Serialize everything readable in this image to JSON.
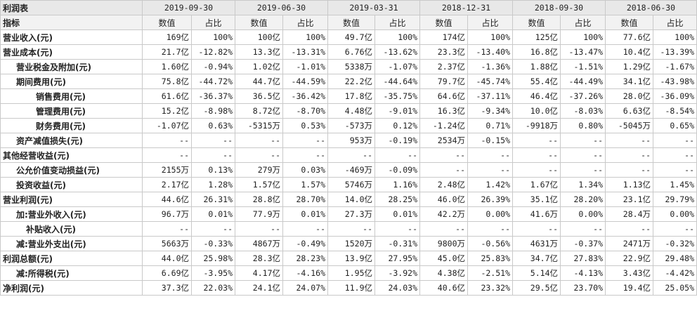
{
  "table": {
    "title": "利润表",
    "index_label": "指标",
    "value_label": "数值",
    "ratio_label": "占比",
    "periods": [
      "2019-09-30",
      "2019-06-30",
      "2019-03-31",
      "2018-12-31",
      "2018-09-30",
      "2018-06-30"
    ],
    "rows": [
      {
        "label": "营业收入(元)",
        "indent": 0,
        "cells": [
          "169亿",
          "100%",
          "100亿",
          "100%",
          "49.7亿",
          "100%",
          "174亿",
          "100%",
          "125亿",
          "100%",
          "77.6亿",
          "100%"
        ]
      },
      {
        "label": "营业成本(元)",
        "indent": 0,
        "cells": [
          "21.7亿",
          "-12.82%",
          "13.3亿",
          "-13.31%",
          "6.76亿",
          "-13.62%",
          "23.3亿",
          "-13.40%",
          "16.8亿",
          "-13.47%",
          "10.4亿",
          "-13.39%"
        ]
      },
      {
        "label": "营业税金及附加(元)",
        "indent": 1,
        "cells": [
          "1.60亿",
          "-0.94%",
          "1.02亿",
          "-1.01%",
          "5338万",
          "-1.07%",
          "2.37亿",
          "-1.36%",
          "1.88亿",
          "-1.51%",
          "1.29亿",
          "-1.67%"
        ]
      },
      {
        "label": "期间费用(元)",
        "indent": 1,
        "cells": [
          "75.8亿",
          "-44.72%",
          "44.7亿",
          "-44.59%",
          "22.2亿",
          "-44.64%",
          "79.7亿",
          "-45.74%",
          "55.4亿",
          "-44.49%",
          "34.1亿",
          "-43.98%"
        ]
      },
      {
        "label": "销售费用(元)",
        "indent": 2,
        "cells": [
          "61.6亿",
          "-36.37%",
          "36.5亿",
          "-36.42%",
          "17.8亿",
          "-35.75%",
          "64.6亿",
          "-37.11%",
          "46.4亿",
          "-37.26%",
          "28.0亿",
          "-36.09%"
        ]
      },
      {
        "label": "管理费用(元)",
        "indent": 2,
        "cells": [
          "15.2亿",
          "-8.98%",
          "8.72亿",
          "-8.70%",
          "4.48亿",
          "-9.01%",
          "16.3亿",
          "-9.34%",
          "10.0亿",
          "-8.03%",
          "6.63亿",
          "-8.54%"
        ]
      },
      {
        "label": "财务费用(元)",
        "indent": 2,
        "cells": [
          "-1.07亿",
          "0.63%",
          "-5315万",
          "0.53%",
          "-573万",
          "0.12%",
          "-1.24亿",
          "0.71%",
          "-9918万",
          "0.80%",
          "-5045万",
          "0.65%"
        ]
      },
      {
        "label": "资产减值损失(元)",
        "indent": 1,
        "cells": [
          "--",
          "--",
          "--",
          "--",
          "953万",
          "-0.19%",
          "2534万",
          "-0.15%",
          "--",
          "--",
          "--",
          "--"
        ]
      },
      {
        "label": "其他经营收益(元)",
        "indent": 0,
        "cells": [
          "--",
          "--",
          "--",
          "--",
          "--",
          "--",
          "--",
          "--",
          "--",
          "--",
          "--",
          "--"
        ]
      },
      {
        "label": "公允价值变动损益(元)",
        "indent": 1,
        "cells": [
          "2155万",
          "0.13%",
          "279万",
          "0.03%",
          "-469万",
          "-0.09%",
          "--",
          "--",
          "--",
          "--",
          "--",
          "--"
        ]
      },
      {
        "label": "投资收益(元)",
        "indent": 1,
        "cells": [
          "2.17亿",
          "1.28%",
          "1.57亿",
          "1.57%",
          "5746万",
          "1.16%",
          "2.48亿",
          "1.42%",
          "1.67亿",
          "1.34%",
          "1.13亿",
          "1.45%"
        ]
      },
      {
        "label": "营业利润(元)",
        "indent": 0,
        "cells": [
          "44.6亿",
          "26.31%",
          "28.8亿",
          "28.70%",
          "14.0亿",
          "28.25%",
          "46.0亿",
          "26.39%",
          "35.1亿",
          "28.20%",
          "23.1亿",
          "29.79%"
        ]
      },
      {
        "label": "加:营业外收入(元)",
        "indent": 1,
        "cells": [
          "96.7万",
          "0.01%",
          "77.9万",
          "0.01%",
          "27.3万",
          "0.01%",
          "42.2万",
          "0.00%",
          "41.6万",
          "0.00%",
          "28.4万",
          "0.00%"
        ]
      },
      {
        "label": "补贴收入(元)",
        "indent": 3,
        "cells": [
          "--",
          "--",
          "--",
          "--",
          "--",
          "--",
          "--",
          "--",
          "--",
          "--",
          "--",
          "--"
        ]
      },
      {
        "label": "减:营业外支出(元)",
        "indent": 1,
        "cells": [
          "5663万",
          "-0.33%",
          "4867万",
          "-0.49%",
          "1520万",
          "-0.31%",
          "9800万",
          "-0.56%",
          "4631万",
          "-0.37%",
          "2471万",
          "-0.32%"
        ]
      },
      {
        "label": "利润总额(元)",
        "indent": 0,
        "cells": [
          "44.0亿",
          "25.98%",
          "28.3亿",
          "28.23%",
          "13.9亿",
          "27.95%",
          "45.0亿",
          "25.83%",
          "34.7亿",
          "27.83%",
          "22.9亿",
          "29.48%"
        ]
      },
      {
        "label": "减:所得税(元)",
        "indent": 1,
        "cells": [
          "6.69亿",
          "-3.95%",
          "4.17亿",
          "-4.16%",
          "1.95亿",
          "-3.92%",
          "4.38亿",
          "-2.51%",
          "5.14亿",
          "-4.13%",
          "3.43亿",
          "-4.42%"
        ]
      },
      {
        "label": "净利润(元)",
        "indent": 0,
        "cells": [
          "37.3亿",
          "22.03%",
          "24.1亿",
          "24.07%",
          "11.9亿",
          "24.03%",
          "40.6亿",
          "23.32%",
          "29.5亿",
          "23.70%",
          "19.4亿",
          "25.05%"
        ]
      }
    ]
  }
}
